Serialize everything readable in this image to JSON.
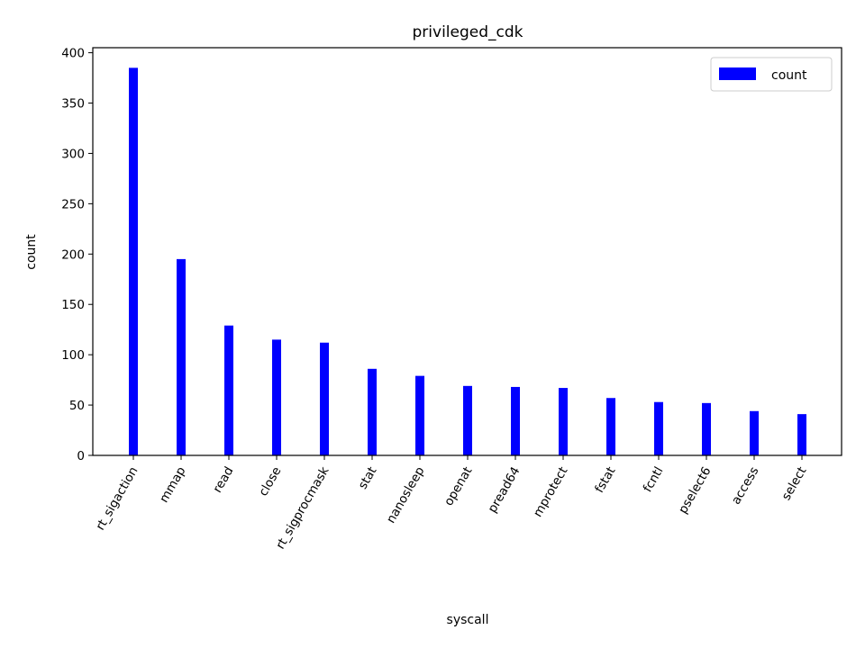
{
  "chart_data": {
    "type": "bar",
    "title": "privileged_cdk",
    "xlabel": "syscall",
    "ylabel": "count",
    "categories": [
      "rt_sigaction",
      "mmap",
      "read",
      "close",
      "rt_sigprocmask",
      "stat",
      "nanosleep",
      "openat",
      "pread64",
      "mprotect",
      "fstat",
      "fcntl",
      "pselect6",
      "access",
      "select"
    ],
    "series": [
      {
        "name": "count",
        "color": "#0000ff",
        "values": [
          385,
          195,
          129,
          115,
          112,
          86,
          79,
          69,
          68,
          67,
          57,
          53,
          52,
          44,
          41
        ]
      }
    ],
    "ylim": [
      0,
      405
    ],
    "yticks": [
      0,
      50,
      100,
      150,
      200,
      250,
      300,
      350,
      400
    ],
    "grid": false,
    "legend_position": "top-right",
    "xtick_rotation_deg": 60
  }
}
